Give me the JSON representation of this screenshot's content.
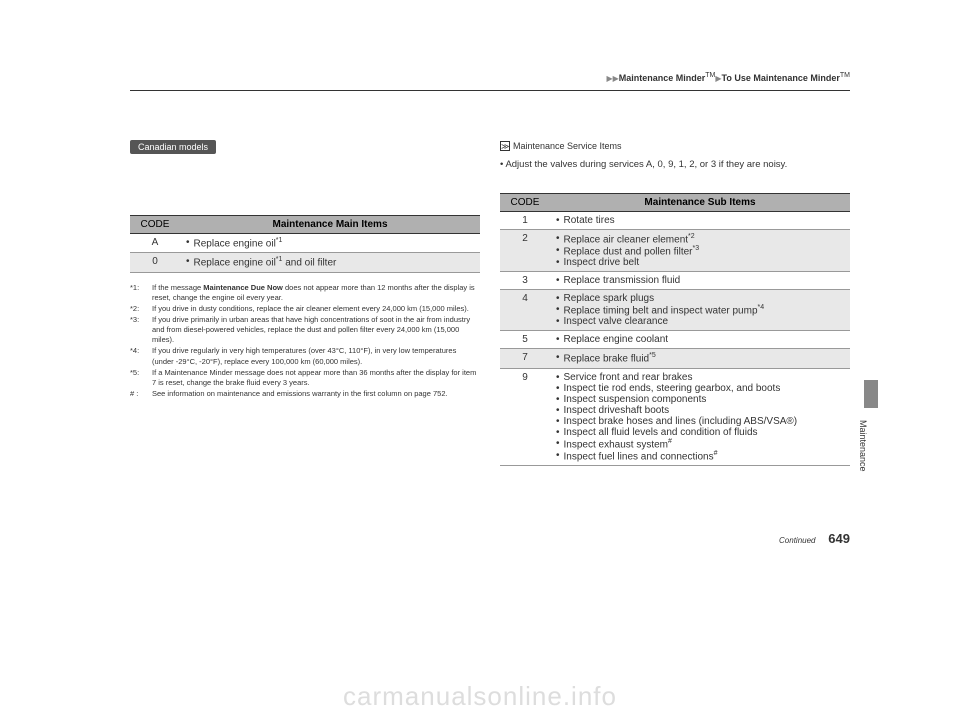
{
  "header": {
    "breadcrumb_pre": "▶▶",
    "breadcrumb_1": "Maintenance Minder",
    "tm": "TM",
    "sep": "▶",
    "breadcrumb_2": "To Use Maintenance Minder"
  },
  "badge": "Canadian models",
  "info_box": {
    "title": "Maintenance Service Items",
    "line1": "• Adjust the valves during services A, 0, 9, 1, 2, or 3 if they are noisy."
  },
  "main_table": {
    "head_code": "CODE",
    "head_title": "Maintenance Main Items",
    "rows": [
      {
        "code": "A",
        "items": [
          "Replace engine oil*1"
        ],
        "shaded": false
      },
      {
        "code": "0",
        "items": [
          "Replace engine oil*1 and oil filter"
        ],
        "shaded": true
      }
    ]
  },
  "sub_table": {
    "head_code": "CODE",
    "head_title": "Maintenance Sub Items",
    "rows": [
      {
        "code": "1",
        "items": [
          "Rotate tires"
        ],
        "shaded": false
      },
      {
        "code": "2",
        "items": [
          "Replace air cleaner element*2",
          "Replace dust and pollen filter*3",
          "Inspect drive belt"
        ],
        "shaded": true
      },
      {
        "code": "3",
        "items": [
          "Replace transmission fluid"
        ],
        "shaded": false
      },
      {
        "code": "4",
        "items": [
          "Replace spark plugs",
          "Replace timing belt and inspect water pump*4",
          "Inspect valve clearance"
        ],
        "shaded": true
      },
      {
        "code": "5",
        "items": [
          "Replace engine coolant"
        ],
        "shaded": false
      },
      {
        "code": "7",
        "items": [
          "Replace brake fluid*5"
        ],
        "shaded": true
      },
      {
        "code": "9",
        "items": [
          "Service front and rear brakes",
          "Inspect tie rod ends, steering gearbox, and boots",
          "Inspect suspension components",
          "Inspect driveshaft boots",
          "Inspect brake hoses and lines (including ABS/VSA®)",
          "Inspect all fluid levels and condition of fluids",
          "Inspect exhaust system#",
          "Inspect fuel lines and connections#"
        ],
        "shaded": false
      }
    ]
  },
  "footnotes": [
    {
      "marker": "*1:",
      "text": "If the message Maintenance Due Now does not appear more than 12 months after the display is reset, change the engine oil every year."
    },
    {
      "marker": "*2:",
      "text": "If you drive in dusty conditions, replace the air cleaner element every 24,000 km (15,000 miles)."
    },
    {
      "marker": "*3:",
      "text": "If you drive primarily in urban areas that have high concentrations of soot in the air from industry and from diesel-powered vehicles, replace the dust and pollen filter every 24,000 km (15,000 miles)."
    },
    {
      "marker": "*4:",
      "text": "If you drive regularly in very high temperatures (over 43°C, 110°F), in very low temperatures (under -29°C, -20°F), replace every 100,000 km (60,000 miles)."
    },
    {
      "marker": "*5:",
      "text": "If a Maintenance Minder message does not appear more than 36 months after the display for item 7 is reset, change the brake fluid every 3 years."
    },
    {
      "marker": "# :",
      "text": "See information on maintenance and emissions warranty in the first column on page 752."
    }
  ],
  "side_label": "Maintenance",
  "footer": {
    "continued": "Continued",
    "page": "649"
  },
  "watermark": "carmanualsonline.info"
}
